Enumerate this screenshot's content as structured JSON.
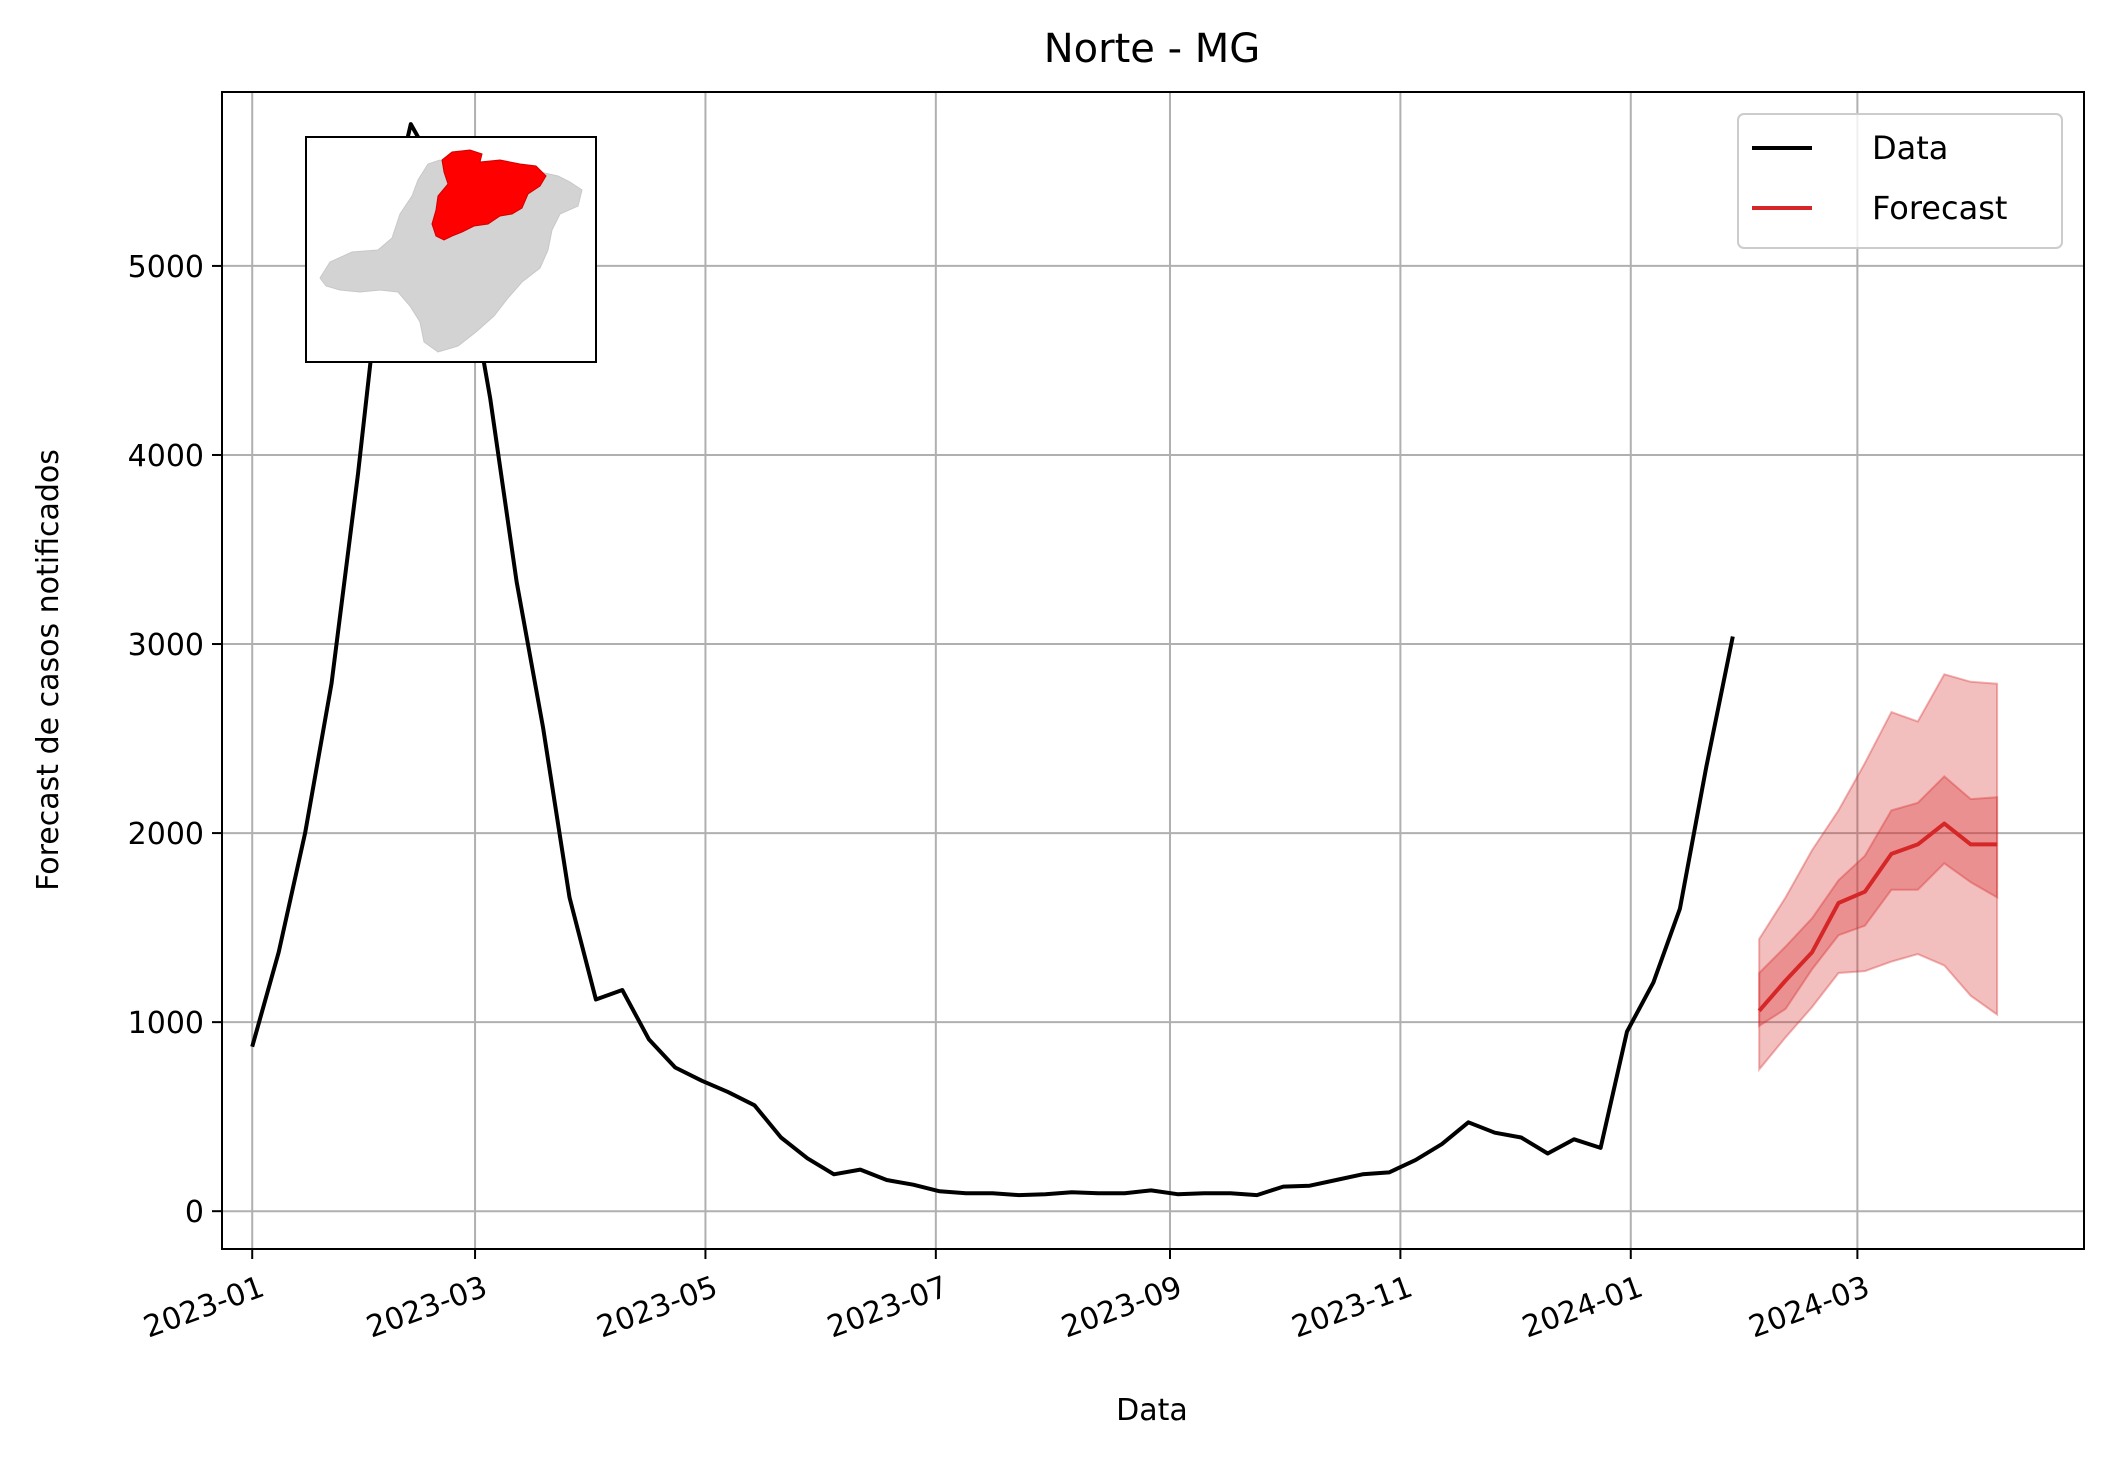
{
  "chart_data": {
    "type": "line",
    "title": "Norte - MG",
    "xlabel": "Data",
    "ylabel": "Forecast de casos notificados",
    "xlim": [
      "2022-12-24",
      "2024-04-30"
    ],
    "ylim": [
      -200,
      5920
    ],
    "grid": true,
    "legend_position": "top-right",
    "x_ticks": [
      "2023-01-01",
      "2023-03-01",
      "2023-05-01",
      "2023-07-01",
      "2023-09-01",
      "2023-11-01",
      "2024-01-01",
      "2024-03-01"
    ],
    "x_tick_labels": [
      "2023-01",
      "2023-03",
      "2023-05",
      "2023-07",
      "2023-09",
      "2023-11",
      "2024-01",
      "2024-03"
    ],
    "y_ticks": [
      0,
      1000,
      2000,
      3000,
      4000,
      5000
    ],
    "y_tick_labels": [
      "0",
      "1000",
      "2000",
      "3000",
      "4000",
      "5000"
    ],
    "series": [
      {
        "name": "Data",
        "color": "#000000",
        "x": [
          "2023-01-01",
          "2023-01-08",
          "2023-01-15",
          "2023-01-22",
          "2023-01-29",
          "2023-02-05",
          "2023-02-12",
          "2023-02-19",
          "2023-02-26",
          "2023-03-05",
          "2023-03-12",
          "2023-03-19",
          "2023-03-26",
          "2023-04-02",
          "2023-04-09",
          "2023-04-16",
          "2023-04-23",
          "2023-04-30",
          "2023-05-07",
          "2023-05-14",
          "2023-05-21",
          "2023-05-28",
          "2023-06-04",
          "2023-06-11",
          "2023-06-18",
          "2023-06-25",
          "2023-07-02",
          "2023-07-09",
          "2023-07-16",
          "2023-07-23",
          "2023-07-30",
          "2023-08-06",
          "2023-08-13",
          "2023-08-20",
          "2023-08-27",
          "2023-09-03",
          "2023-09-10",
          "2023-09-17",
          "2023-09-24",
          "2023-10-01",
          "2023-10-08",
          "2023-10-15",
          "2023-10-22",
          "2023-10-29",
          "2023-11-05",
          "2023-11-12",
          "2023-11-19",
          "2023-11-26",
          "2023-12-03",
          "2023-12-10",
          "2023-12-17",
          "2023-12-24",
          "2023-12-31",
          "2024-01-07",
          "2024-01-14",
          "2024-01-21",
          "2024-01-28"
        ],
        "y": [
          870,
          1370,
          2000,
          2790,
          3900,
          5150,
          5750,
          5500,
          5100,
          4300,
          3330,
          2560,
          1660,
          1120,
          1170,
          910,
          760,
          690,
          630,
          560,
          390,
          280,
          195,
          220,
          165,
          140,
          105,
          95,
          95,
          85,
          90,
          100,
          95,
          95,
          110,
          90,
          95,
          95,
          85,
          130,
          135,
          165,
          195,
          205,
          270,
          355,
          470,
          415,
          390,
          305,
          380,
          335,
          950,
          1210,
          1600,
          2350,
          3040
        ]
      },
      {
        "name": "Forecast",
        "color": "#d62728",
        "x": [
          "2024-02-04",
          "2024-02-11",
          "2024-02-18",
          "2024-02-25",
          "2024-03-03",
          "2024-03-10",
          "2024-03-17",
          "2024-03-24",
          "2024-03-31",
          "2024-04-07"
        ],
        "y": [
          1060,
          1220,
          1370,
          1630,
          1690,
          1890,
          1940,
          2050,
          1940,
          1940
        ],
        "inner_lower": [
          980,
          1070,
          1280,
          1460,
          1510,
          1700,
          1700,
          1840,
          1740,
          1660
        ],
        "inner_upper": [
          1260,
          1400,
          1550,
          1750,
          1880,
          2120,
          2160,
          2300,
          2180,
          2190
        ],
        "outer_lower": [
          750,
          920,
          1080,
          1260,
          1270,
          1320,
          1360,
          1300,
          1140,
          1040
        ],
        "outer_upper": [
          1440,
          1660,
          1910,
          2120,
          2370,
          2640,
          2590,
          2840,
          2800,
          2790
        ]
      }
    ],
    "legend": [
      "Data",
      "Forecast"
    ],
    "inset": {
      "description_icon": "minas-gerais-map-icon",
      "highlight_color": "#ff0000",
      "base_color": "#d3d3d3"
    }
  }
}
